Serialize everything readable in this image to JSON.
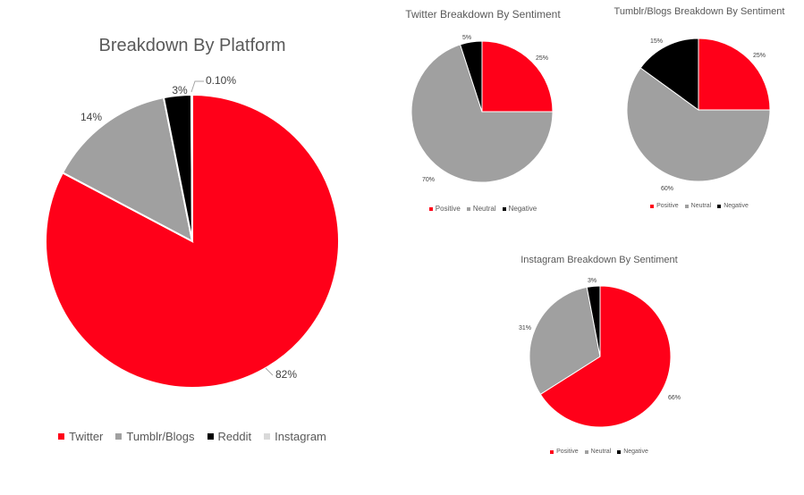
{
  "colors": {
    "Twitter": "#ff0019",
    "Tumblr/Blogs": "#a0a0a0",
    "Reddit": "#000000",
    "Instagram": "#d9d9d9",
    "Positive": "#ff0019",
    "Neutral": "#a0a0a0",
    "Negative": "#000000"
  },
  "chart_data": [
    {
      "type": "pie",
      "title": "Breakdown By Platform",
      "categories": [
        "Twitter",
        "Tumblr/Blogs",
        "Reddit",
        "Instagram"
      ],
      "values": [
        82,
        14,
        3,
        0.1
      ],
      "data_labels": [
        "82%",
        "14%",
        "3%",
        "0.10%"
      ],
      "legend": "bottom"
    },
    {
      "type": "pie",
      "title": "Twitter Breakdown By Sentiment",
      "categories": [
        "Positive",
        "Neutral",
        "Negative"
      ],
      "values": [
        25,
        70,
        5
      ],
      "data_labels": [
        "25%",
        "70%",
        "5%"
      ],
      "legend": "bottom"
    },
    {
      "type": "pie",
      "title": "Tumblr/Blogs Breakdown By Sentiment",
      "categories": [
        "Positive",
        "Neutral",
        "Negative"
      ],
      "values": [
        25,
        60,
        15
      ],
      "data_labels": [
        "25%",
        "60%",
        "15%"
      ],
      "legend": "bottom"
    },
    {
      "type": "pie",
      "title": "Instagram Breakdown By Sentiment",
      "categories": [
        "Positive",
        "Neutral",
        "Negative"
      ],
      "values": [
        66,
        31,
        3
      ],
      "data_labels": [
        "66%",
        "31%",
        "3%"
      ],
      "legend": "bottom"
    }
  ]
}
